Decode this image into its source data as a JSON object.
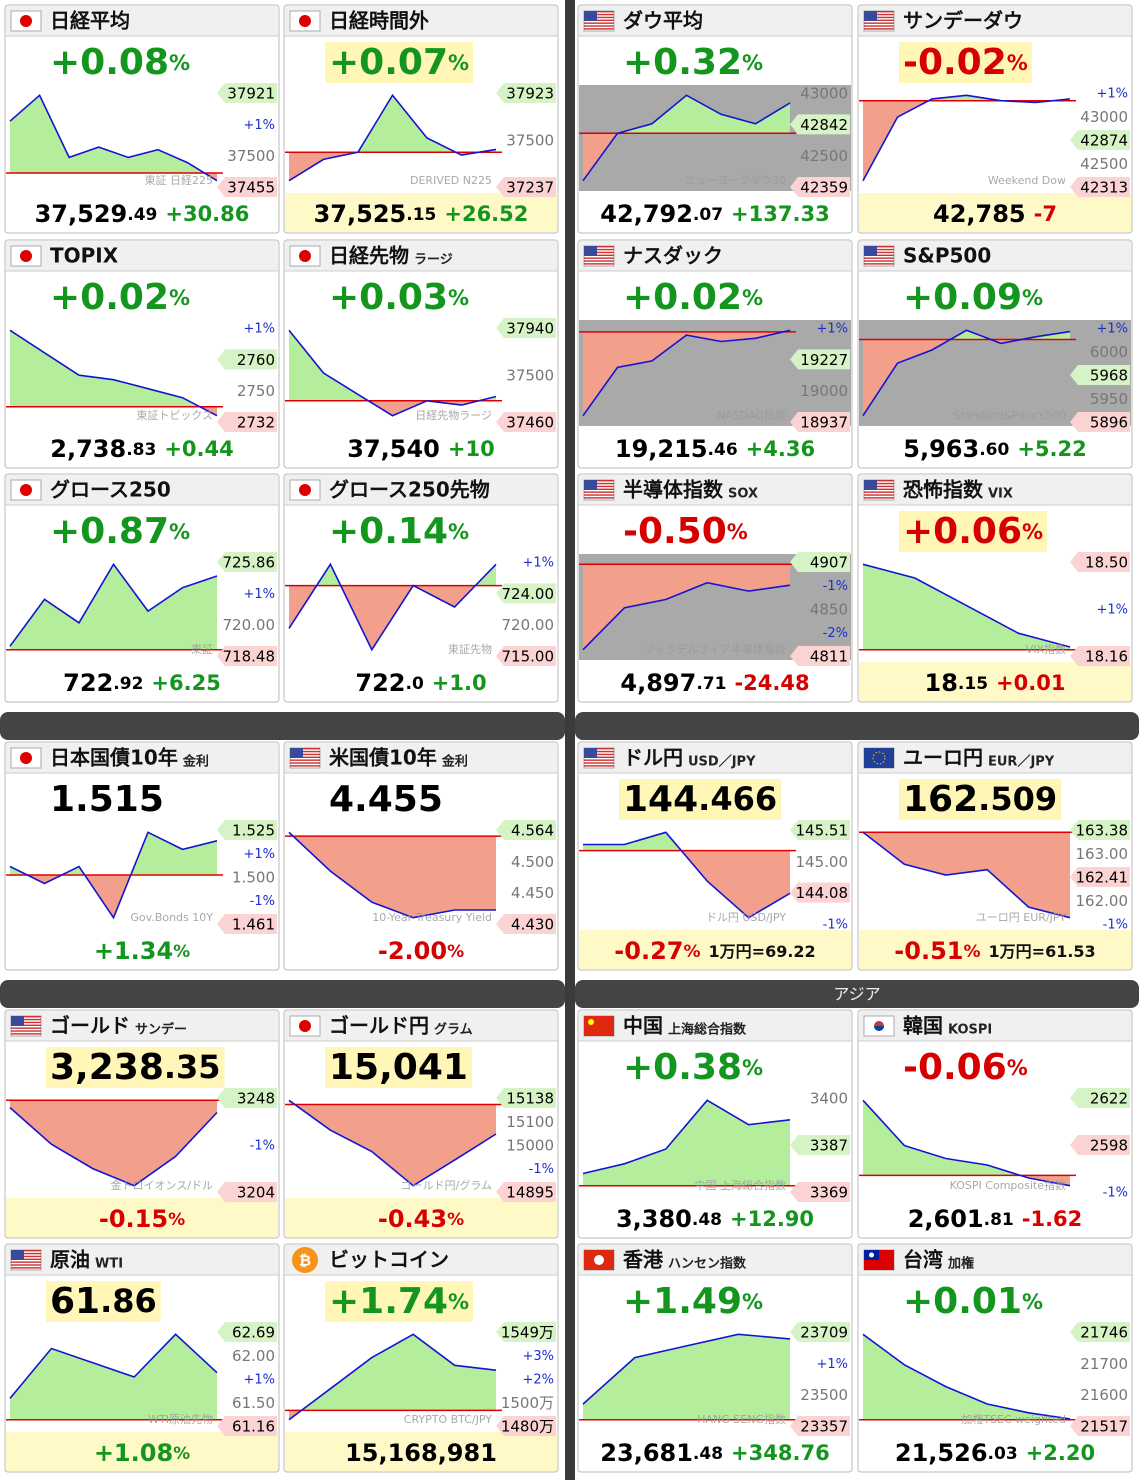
{
  "section_label": "アジア",
  "tiles": [
    {
      "name": "日経平均",
      "flag": "jp",
      "top": [
        "+0.08",
        "%"
      ],
      "top_tone": "up",
      "bottom": [
        "37,529",
        ".49"
      ],
      "bottom_tone": "none",
      "diff": "+30.86",
      "diff_tone": "up",
      "labels": [
        {
          "text": "37921",
          "tone": "green"
        },
        {
          "text": "+1%",
          "tone": "blue"
        },
        {
          "text": "37500",
          "tone": "gray"
        },
        {
          "text": "37455",
          "tone": "red"
        }
      ],
      "watermark": "東証 日経225",
      "line": [
        37700,
        37800,
        37560,
        37600,
        37560,
        37590,
        37540,
        37470
      ],
      "ref": 37500
    },
    {
      "name": "日経時間外",
      "flag": "jp",
      "top": [
        "+0.07",
        "%"
      ],
      "top_tone": "up",
      "top_hl": true,
      "bottom": [
        "37,525",
        ".15"
      ],
      "bottom_tone": "none",
      "diff": "+26.52",
      "diff_tone": "up",
      "bottom_hl": true,
      "labels": [
        {
          "text": "37923",
          "tone": "green"
        },
        {
          "text": "37500",
          "tone": "gray"
        },
        {
          "text": "37237",
          "tone": "red"
        }
      ],
      "watermark": "DERIVED N225",
      "line": [
        37300,
        37450,
        37500,
        37900,
        37600,
        37480,
        37520
      ],
      "ref": 37500
    },
    {
      "name": "ダウ平均",
      "flag": "us",
      "top": [
        "+0.32",
        "%"
      ],
      "top_tone": "up",
      "bottom": [
        "42,792",
        ".07"
      ],
      "bottom_tone": "none",
      "diff": "+137.33",
      "diff_tone": "up",
      "shade": true,
      "labels": [
        {
          "text": "43000",
          "tone": "gray"
        },
        {
          "text": "42842",
          "tone": "green"
        },
        {
          "text": "42500",
          "tone": "gray"
        },
        {
          "text": "42359",
          "tone": "red"
        }
      ],
      "watermark": "ニューヨークダウ30",
      "line": [
        42400,
        42650,
        42700,
        42850,
        42750,
        42700,
        42810
      ],
      "ref": 42650
    },
    {
      "name": "サンデーダウ",
      "flag": "us",
      "top": [
        "-0.02",
        "%"
      ],
      "top_tone": "down",
      "top_hl": true,
      "bottom": [
        "42,785"
      ],
      "bottom_tone": "none",
      "diff": "-7",
      "diff_tone": "down",
      "bottom_hl": true,
      "labels": [
        {
          "text": "+1%",
          "tone": "blue"
        },
        {
          "text": "43000",
          "tone": "gray"
        },
        {
          "text": "42874",
          "tone": "green"
        },
        {
          "text": "42500",
          "tone": "gray"
        },
        {
          "text": "42313",
          "tone": "red"
        }
      ],
      "watermark": "Weekend Dow",
      "line": [
        42350,
        42700,
        42800,
        42820,
        42790,
        42780,
        42800
      ],
      "ref": 42790
    },
    {
      "name": "TOPIX",
      "flag": "jp",
      "top": [
        "+0.02",
        "%"
      ],
      "top_tone": "up",
      "bottom": [
        "2,738",
        ".83"
      ],
      "bottom_tone": "none",
      "diff": "+0.44",
      "diff_tone": "up",
      "labels": [
        {
          "text": "+1%",
          "tone": "blue"
        },
        {
          "text": "2760",
          "tone": "green"
        },
        {
          "text": "2750",
          "tone": "gray"
        },
        {
          "text": "2732",
          "tone": "red"
        }
      ],
      "watermark": "東証トピックス",
      "line": [
        2755,
        2750,
        2745,
        2744,
        2742,
        2740,
        2736
      ],
      "ref": 2738
    },
    {
      "name": "日経先物",
      "sub": "ラージ",
      "flag": "jp",
      "top": [
        "+0.03",
        "%"
      ],
      "top_tone": "up",
      "bottom": [
        "37,540"
      ],
      "bottom_tone": "none",
      "diff": "+10",
      "diff_tone": "up",
      "labels": [
        {
          "text": "37940",
          "tone": "green"
        },
        {
          "text": "37500",
          "tone": "gray"
        },
        {
          "text": "37460",
          "tone": "red"
        }
      ],
      "watermark": "日経先物ラージ",
      "line": [
        37850,
        37650,
        37550,
        37450,
        37520,
        37500,
        37540
      ],
      "ref": 37520
    },
    {
      "name": "ナスダック",
      "flag": "us",
      "top": [
        "+0.02",
        "%"
      ],
      "top_tone": "up",
      "bottom": [
        "19,215",
        ".46"
      ],
      "bottom_tone": "none",
      "diff": "+4.36",
      "diff_tone": "up",
      "shade": true,
      "labels": [
        {
          "text": "+1%",
          "tone": "blue"
        },
        {
          "text": "19227",
          "tone": "green"
        },
        {
          "text": "19000",
          "tone": "gray"
        },
        {
          "text": "18937",
          "tone": "red"
        }
      ],
      "watermark": "NASDAQ指数",
      "line": [
        18950,
        19100,
        19120,
        19200,
        19180,
        19190,
        19215
      ],
      "ref": 19210
    },
    {
      "name": "S&P500",
      "flag": "us",
      "top": [
        "+0.09",
        "%"
      ],
      "top_tone": "up",
      "bottom": [
        "5,963",
        ".60"
      ],
      "bottom_tone": "none",
      "diff": "+5.22",
      "diff_tone": "up",
      "shade": true,
      "labels": [
        {
          "text": "+1%",
          "tone": "blue"
        },
        {
          "text": "6000",
          "tone": "gray"
        },
        {
          "text": "5968",
          "tone": "green"
        },
        {
          "text": "5950",
          "tone": "gray"
        },
        {
          "text": "5896",
          "tone": "red"
        }
      ],
      "watermark": "Standard&Poor's500",
      "line": [
        5900,
        5940,
        5950,
        5965,
        5955,
        5960,
        5964
      ],
      "ref": 5958
    },
    {
      "name": "グロース250",
      "flag": "jp",
      "top": [
        "+0.87",
        "%"
      ],
      "top_tone": "up",
      "bottom": [
        "722",
        ".92"
      ],
      "bottom_tone": "none",
      "diff": "+6.25",
      "diff_tone": "up",
      "labels": [
        {
          "text": "725.86",
          "tone": "green"
        },
        {
          "text": "+1%",
          "tone": "blue"
        },
        {
          "text": "720.00",
          "tone": "gray"
        },
        {
          "text": "718.48",
          "tone": "red"
        }
      ],
      "watermark": "東証",
      "line": [
        717,
        721,
        719,
        724,
        720,
        722,
        723
      ],
      "ref": 716.7
    },
    {
      "name": "グロース250先物",
      "flag": "jp",
      "top": [
        "+0.14",
        "%"
      ],
      "top_tone": "up",
      "bottom": [
        "722",
        ".0"
      ],
      "bottom_tone": "none",
      "diff": "+1.0",
      "diff_tone": "up",
      "labels": [
        {
          "text": "+1%",
          "tone": "blue"
        },
        {
          "text": "724.00",
          "tone": "green"
        },
        {
          "text": "720.00",
          "tone": "gray"
        },
        {
          "text": "715.00",
          "tone": "red"
        }
      ],
      "watermark": "東証先物",
      "line": [
        719,
        722,
        718,
        721,
        720,
        722
      ],
      "ref": 721
    },
    {
      "name": "半導体指数",
      "sub": "SOX",
      "flag": "us",
      "top": [
        "-0.50",
        "%"
      ],
      "top_tone": "down",
      "bottom": [
        "4,897",
        ".71"
      ],
      "bottom_tone": "none",
      "diff": "-24.48",
      "diff_tone": "down",
      "shade": true,
      "labels": [
        {
          "text": "4907",
          "tone": "green"
        },
        {
          "text": "-1%",
          "tone": "blue"
        },
        {
          "text": "4850",
          "tone": "gray"
        },
        {
          "text": "-2%",
          "tone": "blue"
        },
        {
          "text": "4811",
          "tone": "red"
        }
      ],
      "watermark": "フィラデルフィア半導体指数",
      "line": [
        4820,
        4870,
        4880,
        4900,
        4890,
        4897
      ],
      "ref": 4922
    },
    {
      "name": "恐怖指数",
      "sub": "VIX",
      "flag": "us",
      "top": [
        "+0.06",
        "%"
      ],
      "top_tone": "down",
      "top_hl": true,
      "bottom": [
        "18",
        ".15"
      ],
      "bottom_tone": "none",
      "diff": "+0.01",
      "diff_tone": "down",
      "bottom_hl": true,
      "labels": [
        {
          "text": "18.50",
          "tone": "red"
        },
        {
          "text": "+1%",
          "tone": "blue"
        },
        {
          "text": "18.16",
          "tone": "red"
        }
      ],
      "watermark": "VIX指数",
      "line": [
        18.45,
        18.4,
        18.3,
        18.2,
        18.15
      ],
      "ref": 18.14
    },
    {
      "name": "日本国債10年",
      "sub": "金利",
      "flag": "jp",
      "top": [
        "1.515"
      ],
      "top_tone": "none",
      "bottom": [
        "+1.34",
        "%"
      ],
      "bottom_tone": "up",
      "labels": [
        {
          "text": "1.525",
          "tone": "green"
        },
        {
          "text": "+1%",
          "tone": "blue"
        },
        {
          "text": "1.500",
          "tone": "gray"
        },
        {
          "text": "-1%",
          "tone": "blue"
        },
        {
          "text": "1.461",
          "tone": "red"
        }
      ],
      "watermark": "Gov.Bonds 10Y",
      "line": [
        1.5,
        1.49,
        1.5,
        1.47,
        1.52,
        1.51,
        1.515
      ],
      "ref": 1.495
    },
    {
      "name": "米国債10年",
      "sub": "金利",
      "flag": "us",
      "top": [
        "4.455"
      ],
      "top_tone": "none",
      "bottom": [
        "-2.00",
        "%"
      ],
      "bottom_tone": "down",
      "labels": [
        {
          "text": "4.564",
          "tone": "green"
        },
        {
          "text": "4.500",
          "tone": "gray"
        },
        {
          "text": "4.450",
          "tone": "gray"
        },
        {
          "text": "4.430",
          "tone": "red"
        }
      ],
      "watermark": "10-Year Treasury Yield",
      "line": [
        4.55,
        4.5,
        4.46,
        4.44,
        4.45,
        4.45
      ],
      "ref": 4.545
    },
    {
      "name": "ドル円",
      "sub": "USD／JPY",
      "flag": "us",
      "top": [
        "144",
        ".466"
      ],
      "top_tone": "none",
      "top_hl": true,
      "bottom": [
        "-0.27",
        "%"
      ],
      "bottom_tone": "down",
      "note": "1万円=69.22",
      "bottom_hl": true,
      "labels": [
        {
          "text": "145.51",
          "tone": "green"
        },
        {
          "text": "145.00",
          "tone": "gray"
        },
        {
          "text": "144.08",
          "tone": "red"
        },
        {
          "text": "-1%",
          "tone": "blue"
        }
      ],
      "watermark": "ドル円 USD/JPY",
      "line": [
        144.9,
        144.9,
        145.0,
        144.6,
        144.3,
        144.5
      ],
      "ref": 144.85
    },
    {
      "name": "ユーロ円",
      "sub": "EUR／JPY",
      "flag": "eu",
      "top": [
        "162",
        ".509"
      ],
      "top_tone": "none",
      "top_hl": true,
      "bottom": [
        "-0.51",
        "%"
      ],
      "bottom_tone": "down",
      "note": "1万円=61.53",
      "bottom_hl": true,
      "labels": [
        {
          "text": "163.38",
          "tone": "green"
        },
        {
          "text": "163.00",
          "tone": "gray"
        },
        {
          "text": "162.41",
          "tone": "red"
        },
        {
          "text": "162.00",
          "tone": "gray"
        },
        {
          "text": "-1%",
          "tone": "blue"
        }
      ],
      "watermark": "ユーロ円 EUR/JPY",
      "line": [
        163.3,
        163.0,
        162.9,
        162.95,
        162.6,
        162.5
      ],
      "ref": 163.3
    },
    {
      "name": "ゴールド",
      "sub": "サンデー",
      "flag": "us",
      "top": [
        "3,238",
        ".35"
      ],
      "top_tone": "none",
      "top_hl": true,
      "bottom": [
        "-0.15",
        "%"
      ],
      "bottom_tone": "down",
      "bottom_hl": true,
      "labels": [
        {
          "text": "3248",
          "tone": "green"
        },
        {
          "text": "-1%",
          "tone": "blue"
        },
        {
          "text": "3204",
          "tone": "red"
        }
      ],
      "watermark": "金トロイオンス/ドル",
      "line": [
        3240,
        3225,
        3215,
        3208,
        3220,
        3238
      ],
      "ref": 3243
    },
    {
      "name": "ゴールド円",
      "sub": "グラム",
      "flag": "jp",
      "top": [
        "15,041"
      ],
      "top_tone": "none",
      "top_hl": true,
      "bottom": [
        "-0.43",
        "%"
      ],
      "bottom_tone": "down",
      "bottom_hl": true,
      "labels": [
        {
          "text": "15138",
          "tone": "green"
        },
        {
          "text": "15100",
          "tone": "gray"
        },
        {
          "text": "15000",
          "tone": "gray"
        },
        {
          "text": "-1%",
          "tone": "blue"
        },
        {
          "text": "14895",
          "tone": "red"
        }
      ],
      "watermark": "ゴールド円/グラム",
      "line": [
        15120,
        15050,
        15000,
        14920,
        14980,
        15041
      ],
      "ref": 15110
    },
    {
      "name": "中国",
      "sub": "上海総合指数",
      "flag": "cn",
      "top": [
        "+0.38",
        "%"
      ],
      "top_tone": "up",
      "bottom": [
        "3,380",
        ".48"
      ],
      "bottom_tone": "none",
      "diff": "+12.90",
      "diff_tone": "up",
      "labels": [
        {
          "text": "3400",
          "tone": "gray"
        },
        {
          "text": "3387",
          "tone": "green"
        },
        {
          "text": "3369",
          "tone": "red"
        }
      ],
      "watermark": "中国 上海総合指数",
      "line": [
        3370,
        3372,
        3375,
        3385,
        3380,
        3381
      ],
      "ref": 3367.5
    },
    {
      "name": "韓国",
      "sub": "KOSPI",
      "flag": "kr",
      "top": [
        "-0.06",
        "%"
      ],
      "top_tone": "down",
      "bottom": [
        "2,601",
        ".81"
      ],
      "bottom_tone": "none",
      "diff": "-1.62",
      "diff_tone": "down",
      "labels": [
        {
          "text": "2622",
          "tone": "green"
        },
        {
          "text": "2598",
          "tone": "red"
        },
        {
          "text": "-1%",
          "tone": "blue"
        }
      ],
      "watermark": "KOSPI Composite指数",
      "line": [
        2615,
        2608,
        2606,
        2605,
        2603,
        2601.8
      ],
      "ref": 2603.4
    },
    {
      "name": "原油",
      "sub": "WTI",
      "flag": "us",
      "top": [
        "61",
        ".86"
      ],
      "top_tone": "none",
      "top_hl": true,
      "bottom": [
        "+1.08",
        "%"
      ],
      "bottom_tone": "up",
      "bottom_hl": true,
      "labels": [
        {
          "text": "62.69",
          "tone": "green"
        },
        {
          "text": "62.00",
          "tone": "gray"
        },
        {
          "text": "+1%",
          "tone": "blue"
        },
        {
          "text": "61.50",
          "tone": "gray"
        },
        {
          "text": "61.16",
          "tone": "red"
        }
      ],
      "watermark": "WTI原油先物",
      "line": [
        61.5,
        62.2,
        62.0,
        61.8,
        62.4,
        61.86
      ],
      "ref": 61.2
    },
    {
      "name": "ビットコイン",
      "flag": "btc",
      "top": [
        "+1.74",
        "%"
      ],
      "top_tone": "up",
      "top_hl": true,
      "bottom": [
        "15,168,981"
      ],
      "bottom_tone": "none",
      "bottom_hl": true,
      "labels": [
        {
          "text": "1549万",
          "tone": "green"
        },
        {
          "text": "+3%",
          "tone": "blue"
        },
        {
          "text": "+2%",
          "tone": "blue"
        },
        {
          "text": "1500万",
          "tone": "gray"
        },
        {
          "text": "1480万",
          "tone": "red"
        }
      ],
      "watermark": "CRYPTO BTC/JPY",
      "line": [
        14850000,
        15050000,
        15250000,
        15400000,
        15200000,
        15169000
      ],
      "ref": 14910000
    },
    {
      "name": "香港",
      "sub": "ハンセン指数",
      "flag": "hk",
      "top": [
        "+1.49",
        "%"
      ],
      "top_tone": "up",
      "bottom": [
        "23,681",
        ".48"
      ],
      "bottom_tone": "none",
      "diff": "+348.76",
      "diff_tone": "up",
      "labels": [
        {
          "text": "23709",
          "tone": "green"
        },
        {
          "text": "+1%",
          "tone": "blue"
        },
        {
          "text": "23500",
          "tone": "gray"
        },
        {
          "text": "23357",
          "tone": "red"
        }
      ],
      "watermark": "HANG SENG指数",
      "line": [
        23400,
        23600,
        23650,
        23700,
        23680
      ],
      "ref": 23333
    },
    {
      "name": "台湾",
      "sub": "加権",
      "flag": "tw",
      "top": [
        "+0.01",
        "%"
      ],
      "top_tone": "up",
      "bottom": [
        "21,526",
        ".03"
      ],
      "bottom_tone": "none",
      "diff": "+2.20",
      "diff_tone": "up",
      "labels": [
        {
          "text": "21746",
          "tone": "green"
        },
        {
          "text": "21700",
          "tone": "gray"
        },
        {
          "text": "21600",
          "tone": "gray"
        },
        {
          "text": "21517",
          "tone": "red"
        }
      ],
      "watermark": "加権TSEC weighted",
      "line": [
        21720,
        21650,
        21600,
        21560,
        21540,
        21526
      ],
      "ref": 21524
    }
  ]
}
